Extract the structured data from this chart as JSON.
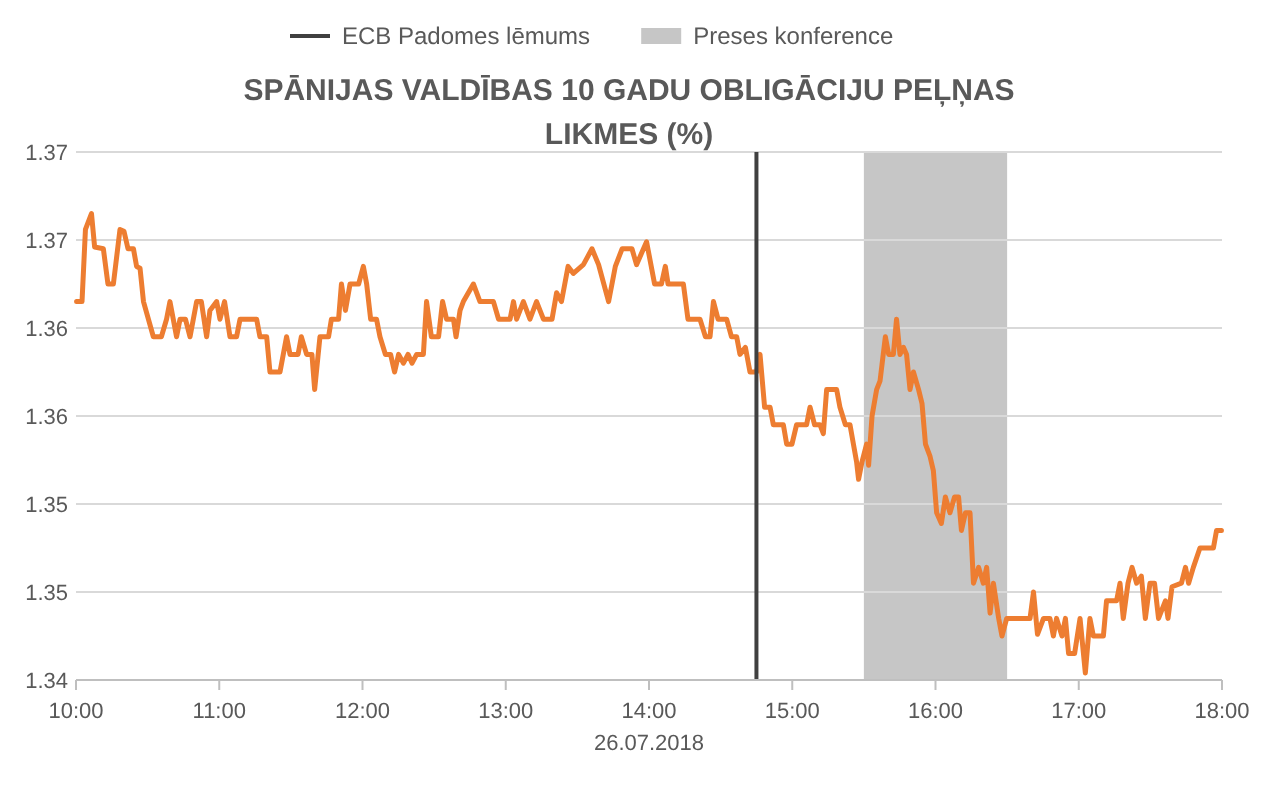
{
  "chart_data": {
    "type": "line",
    "title": "SPĀNIJAS VALDĪBAS 10 GADU OBLIGĀCIJU PEĻŅAS LIKMES (%)",
    "xlabel": "26.07.2018",
    "xlim": [
      10,
      18
    ],
    "xticks": [
      {
        "value": 10,
        "label": "10:00"
      },
      {
        "value": 11,
        "label": "11:00"
      },
      {
        "value": 12,
        "label": "12:00"
      },
      {
        "value": 13,
        "label": "13:00"
      },
      {
        "value": 14,
        "label": "14:00"
      },
      {
        "value": 15,
        "label": "15:00"
      },
      {
        "value": 16,
        "label": "16:00"
      },
      {
        "value": 17,
        "label": "17:00"
      },
      {
        "value": 18,
        "label": "18:00"
      }
    ],
    "ylim": [
      1.34,
      1.37
    ],
    "yticks": [
      {
        "value": 1.34,
        "label": "1.34"
      },
      {
        "value": 1.345,
        "label": "1.35"
      },
      {
        "value": 1.35,
        "label": "1.35"
      },
      {
        "value": 1.355,
        "label": "1.36"
      },
      {
        "value": 1.36,
        "label": "1.36"
      },
      {
        "value": 1.365,
        "label": "1.37"
      },
      {
        "value": 1.37,
        "label": "1.37"
      }
    ],
    "grid": "y",
    "legend": "top",
    "ref_lines": [
      {
        "axis": "x",
        "value": 14.75,
        "label": "ECB Padomes lēmums",
        "color": "#404040"
      }
    ],
    "bands": [
      {
        "axis": "x",
        "from": 15.5,
        "to": 16.5,
        "label": "Preses konference",
        "color": "#c6c6c6"
      }
    ],
    "series": [
      {
        "color": "#ed7d31",
        "x": [
          10.004,
          10.042,
          10.066,
          10.108,
          10.13,
          10.191,
          10.223,
          10.261,
          10.307,
          10.335,
          10.363,
          10.401,
          10.423,
          10.447,
          10.471,
          10.54,
          10.596,
          10.632,
          10.656,
          10.702,
          10.726,
          10.764,
          10.796,
          10.842,
          10.875,
          10.912,
          10.935,
          10.982,
          11.005,
          11.037,
          11.075,
          11.121,
          11.145,
          11.261,
          11.284,
          11.331,
          11.354,
          11.424,
          11.47,
          11.494,
          11.55,
          11.573,
          11.61,
          11.647,
          11.666,
          11.703,
          11.763,
          11.783,
          11.833,
          11.853,
          11.881,
          11.913,
          11.973,
          12.006,
          12.029,
          12.057,
          12.098,
          12.122,
          12.16,
          12.196,
          12.224,
          12.252,
          12.286,
          12.318,
          12.346,
          12.378,
          12.425,
          12.447,
          12.481,
          12.531,
          12.559,
          12.587,
          12.635,
          12.653,
          12.681,
          12.704,
          12.774,
          12.82,
          12.914,
          12.95,
          13.03,
          13.054,
          13.076,
          13.123,
          13.169,
          13.215,
          13.263,
          13.323,
          13.355,
          13.389,
          13.435,
          13.472,
          13.542,
          13.602,
          13.648,
          13.718,
          13.765,
          13.812,
          13.881,
          13.913,
          13.983,
          14.039,
          14.087,
          14.114,
          14.133,
          14.24,
          14.272,
          14.356,
          14.394,
          14.426,
          14.45,
          14.482,
          14.542,
          14.576,
          14.612,
          14.635,
          14.673,
          14.705,
          14.751,
          14.775,
          14.807,
          14.845,
          14.868,
          14.938,
          14.961,
          14.998,
          15.03,
          15.1,
          15.124,
          15.156,
          15.194,
          15.217,
          15.24,
          15.31,
          15.333,
          15.371,
          15.403,
          15.427,
          15.449,
          15.463,
          15.487,
          15.519,
          15.533,
          15.557,
          15.589,
          15.613,
          15.65,
          15.673,
          15.706,
          15.728,
          15.752,
          15.776,
          15.798,
          15.822,
          15.846,
          15.882,
          15.906,
          15.93,
          15.962,
          15.985,
          16.008,
          16.041,
          16.069,
          16.101,
          16.133,
          16.161,
          16.181,
          16.209,
          16.241,
          16.265,
          16.301,
          16.334,
          16.357,
          16.381,
          16.404,
          16.441,
          16.464,
          16.497,
          16.534,
          16.66,
          16.684,
          16.712,
          16.754,
          16.799,
          16.823,
          16.845,
          16.883,
          16.907,
          16.929,
          16.971,
          17.009,
          17.046,
          17.078,
          17.102,
          17.172,
          17.194,
          17.264,
          17.288,
          17.311,
          17.344,
          17.372,
          17.404,
          17.437,
          17.465,
          17.497,
          17.529,
          17.557,
          17.605,
          17.623,
          17.651,
          17.717,
          17.745,
          17.767,
          17.8,
          17.846,
          17.94,
          17.962,
          17.996
        ],
        "values": [
          1.3615,
          1.3615,
          1.3656,
          1.3665,
          1.3646,
          1.3645,
          1.3625,
          1.3625,
          1.3656,
          1.3655,
          1.3645,
          1.3645,
          1.3635,
          1.3634,
          1.3615,
          1.3595,
          1.3595,
          1.3605,
          1.3615,
          1.3595,
          1.3605,
          1.3605,
          1.3595,
          1.3615,
          1.3615,
          1.3595,
          1.361,
          1.3615,
          1.3605,
          1.3615,
          1.3595,
          1.3595,
          1.3605,
          1.3605,
          1.3595,
          1.3595,
          1.3575,
          1.3575,
          1.3595,
          1.3585,
          1.3585,
          1.3595,
          1.3585,
          1.3585,
          1.3565,
          1.3595,
          1.3595,
          1.3605,
          1.3605,
          1.3625,
          1.361,
          1.3625,
          1.3625,
          1.3635,
          1.3625,
          1.3605,
          1.3605,
          1.3595,
          1.3585,
          1.3585,
          1.3575,
          1.3585,
          1.358,
          1.3585,
          1.358,
          1.3585,
          1.3585,
          1.3615,
          1.3595,
          1.3595,
          1.3615,
          1.3605,
          1.3605,
          1.3595,
          1.361,
          1.3615,
          1.3625,
          1.3615,
          1.3615,
          1.3605,
          1.3605,
          1.3615,
          1.3605,
          1.3615,
          1.3605,
          1.3615,
          1.3605,
          1.3605,
          1.362,
          1.3615,
          1.3635,
          1.3631,
          1.3636,
          1.3645,
          1.3636,
          1.3615,
          1.3635,
          1.3645,
          1.3645,
          1.3636,
          1.3649,
          1.3625,
          1.3625,
          1.3635,
          1.3625,
          1.3625,
          1.3605,
          1.3605,
          1.3595,
          1.3595,
          1.3615,
          1.3605,
          1.3605,
          1.3595,
          1.3595,
          1.3585,
          1.3589,
          1.3575,
          1.3575,
          1.3585,
          1.3555,
          1.3555,
          1.3545,
          1.3545,
          1.3534,
          1.3534,
          1.3545,
          1.3545,
          1.3555,
          1.3545,
          1.3545,
          1.354,
          1.3565,
          1.3565,
          1.3555,
          1.3545,
          1.3545,
          1.3534,
          1.3524,
          1.3514,
          1.3524,
          1.3534,
          1.3522,
          1.355,
          1.3565,
          1.357,
          1.3595,
          1.3585,
          1.3585,
          1.3605,
          1.3585,
          1.3589,
          1.3585,
          1.3565,
          1.3575,
          1.3565,
          1.3557,
          1.3534,
          1.3527,
          1.3519,
          1.3495,
          1.3489,
          1.3504,
          1.3495,
          1.3504,
          1.3504,
          1.3485,
          1.3495,
          1.3495,
          1.3455,
          1.3464,
          1.3455,
          1.3464,
          1.3438,
          1.3455,
          1.3435,
          1.3425,
          1.3435,
          1.3435,
          1.3435,
          1.345,
          1.3426,
          1.3435,
          1.3435,
          1.3425,
          1.3435,
          1.3425,
          1.3435,
          1.3415,
          1.3415,
          1.3435,
          1.3404,
          1.3435,
          1.3425,
          1.3425,
          1.3445,
          1.3445,
          1.3455,
          1.3435,
          1.3455,
          1.3464,
          1.3455,
          1.3459,
          1.3435,
          1.3455,
          1.3455,
          1.3435,
          1.3445,
          1.3435,
          1.3453,
          1.3455,
          1.3464,
          1.3455,
          1.3464,
          1.3475,
          1.3475,
          1.3485,
          1.3485
        ]
      }
    ]
  }
}
